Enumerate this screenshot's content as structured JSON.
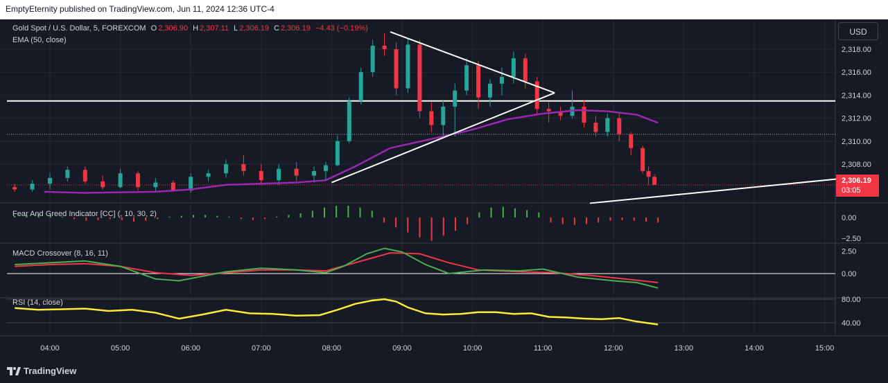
{
  "header": {
    "publisher": "EmptyEternity published on TradingView.com, Jun 11, 2024 12:36 UTC-4"
  },
  "toolbar": {
    "currency_label": "USD"
  },
  "legend": {
    "symbol": "Gold Spot / U.S. Dollar, 5, FOREXCOM",
    "o_label": "O",
    "o_value": "2,306.90",
    "h_label": "H",
    "h_value": "2,307.11",
    "l_label": "L",
    "l_value": "2,306.19",
    "c_label": "C",
    "c_value": "2,306.19",
    "change": "−4.43 (−0.19%)",
    "ema": "EMA (50, close)"
  },
  "indicators": {
    "fear_greed": "Fear And Greed Indicator [CC] (, 10, 30, 2)",
    "macd": "MACD Crossover (8, 16, 11)",
    "rsi": "RSI (14, close)"
  },
  "last_price": {
    "price": "2,306.19",
    "countdown": "03:05"
  },
  "footer": {
    "brand": "TradingView"
  },
  "colors": {
    "up": "#26a69a",
    "down": "#f23645",
    "ema": "#9c27b0",
    "rsi": "#ffeb3b",
    "macd": "#4caf50",
    "signal": "#f23645",
    "background": "#161a25"
  },
  "chart_data": {
    "type": "candlestick",
    "title": "Gold Spot / U.S. Dollar, 5, FOREXCOM",
    "x_tick_labels": [
      "04:00",
      "05:00",
      "06:00",
      "07:00",
      "08:00",
      "09:00",
      "10:00",
      "11:00",
      "12:00",
      "13:00",
      "14:00",
      "15:00"
    ],
    "y_tick_labels": [
      "2,318.00",
      "2,316.00",
      "2,314.00",
      "2,312.00",
      "2,310.00",
      "2,308.00"
    ],
    "ylim": [
      2305.5,
      2319.5
    ],
    "horizontal_level": 2313.5,
    "dotted_level": 2310.6,
    "last_price_level": 2306.19,
    "ema_points": [
      [
        "03:55",
        2305.6
      ],
      [
        "04:30",
        2305.5
      ],
      [
        "05:30",
        2305.6
      ],
      [
        "06:00",
        2305.8
      ],
      [
        "06:30",
        2306.2
      ],
      [
        "07:00",
        2306.3
      ],
      [
        "07:30",
        2306.4
      ],
      [
        "07:55",
        2306.6
      ],
      [
        "08:20",
        2307.8
      ],
      [
        "08:50",
        2309.4
      ],
      [
        "09:30",
        2310.3
      ],
      [
        "10:00",
        2311.0
      ],
      [
        "10:30",
        2311.9
      ],
      [
        "11:00",
        2312.4
      ],
      [
        "11:30",
        2312.7
      ],
      [
        "11:55",
        2312.6
      ],
      [
        "12:20",
        2312.3
      ],
      [
        "12:38",
        2311.6
      ]
    ],
    "candles_ohlc": [
      [
        "03:30",
        2306.0,
        2306.3,
        2305.6,
        2305.8
      ],
      [
        "03:45",
        2305.8,
        2306.6,
        2305.6,
        2306.3
      ],
      [
        "04:00",
        2306.3,
        2307.2,
        2305.8,
        2306.8
      ],
      [
        "04:15",
        2306.8,
        2307.8,
        2306.5,
        2307.5
      ],
      [
        "04:30",
        2307.5,
        2307.8,
        2306.3,
        2306.5
      ],
      [
        "04:45",
        2306.5,
        2307.0,
        2305.8,
        2306.0
      ],
      [
        "05:00",
        2306.0,
        2307.6,
        2305.9,
        2307.2
      ],
      [
        "05:15",
        2307.2,
        2307.4,
        2305.7,
        2306.0
      ],
      [
        "05:30",
        2306.0,
        2306.8,
        2305.6,
        2306.4
      ],
      [
        "05:45",
        2306.4,
        2306.6,
        2305.6,
        2305.7
      ],
      [
        "06:00",
        2305.7,
        2307.2,
        2305.5,
        2306.9
      ],
      [
        "06:15",
        2306.9,
        2307.5,
        2306.5,
        2307.2
      ],
      [
        "06:30",
        2307.2,
        2308.4,
        2306.8,
        2308.0
      ],
      [
        "06:45",
        2308.0,
        2308.8,
        2307.0,
        2307.4
      ],
      [
        "07:00",
        2307.4,
        2308.0,
        2306.2,
        2306.6
      ],
      [
        "07:15",
        2306.6,
        2308.0,
        2306.2,
        2307.6
      ],
      [
        "07:30",
        2307.6,
        2308.2,
        2306.5,
        2307.0
      ],
      [
        "07:45",
        2307.0,
        2307.8,
        2306.4,
        2307.4
      ],
      [
        "07:55",
        2307.4,
        2308.2,
        2306.6,
        2307.9
      ],
      [
        "08:05",
        2307.9,
        2310.5,
        2307.8,
        2310.0
      ],
      [
        "08:15",
        2310.0,
        2313.8,
        2309.8,
        2313.5
      ],
      [
        "08:25",
        2313.5,
        2316.4,
        2313.2,
        2316.0
      ],
      [
        "08:35",
        2316.0,
        2318.8,
        2315.6,
        2318.3
      ],
      [
        "08:45",
        2318.3,
        2319.4,
        2317.4,
        2318.0
      ],
      [
        "08:55",
        2318.0,
        2318.6,
        2314.0,
        2314.6
      ],
      [
        "09:05",
        2314.6,
        2319.0,
        2314.2,
        2318.4
      ],
      [
        "09:15",
        2318.4,
        2318.8,
        2312.0,
        2312.6
      ],
      [
        "09:25",
        2312.6,
        2313.4,
        2310.8,
        2311.4
      ],
      [
        "09:35",
        2311.4,
        2313.6,
        2310.2,
        2313.0
      ],
      [
        "09:45",
        2313.0,
        2315.0,
        2310.4,
        2314.4
      ],
      [
        "09:55",
        2314.4,
        2317.2,
        2314.0,
        2316.6
      ],
      [
        "10:05",
        2316.6,
        2317.0,
        2312.8,
        2313.8
      ],
      [
        "10:15",
        2313.8,
        2315.4,
        2313.0,
        2315.0
      ],
      [
        "10:25",
        2315.0,
        2316.4,
        2314.0,
        2315.6
      ],
      [
        "10:35",
        2315.6,
        2317.8,
        2315.0,
        2317.2
      ],
      [
        "10:45",
        2317.2,
        2317.6,
        2314.6,
        2315.2
      ],
      [
        "10:55",
        2315.2,
        2315.6,
        2312.4,
        2312.8
      ],
      [
        "11:05",
        2312.8,
        2313.4,
        2311.6,
        2312.6
      ],
      [
        "11:15",
        2312.6,
        2313.0,
        2311.8,
        2312.2
      ],
      [
        "11:25",
        2312.2,
        2314.4,
        2312.0,
        2313.0
      ],
      [
        "11:35",
        2313.0,
        2313.6,
        2311.2,
        2311.6
      ],
      [
        "11:45",
        2311.6,
        2312.2,
        2310.4,
        2310.8
      ],
      [
        "11:55",
        2310.8,
        2312.4,
        2310.4,
        2312.0
      ],
      [
        "12:05",
        2312.0,
        2312.4,
        2310.0,
        2310.6
      ],
      [
        "12:15",
        2310.6,
        2310.8,
        2308.8,
        2309.4
      ],
      [
        "12:25",
        2309.4,
        2309.6,
        2307.2,
        2307.4
      ],
      [
        "12:30",
        2307.4,
        2307.8,
        2306.2,
        2306.9
      ],
      [
        "12:35",
        2306.9,
        2307.11,
        2306.19,
        2306.19
      ]
    ],
    "fear_greed": {
      "y_tick_labels": [
        "0.00",
        "−2.50"
      ],
      "values": [
        0.2,
        0.3,
        0.4,
        0.3,
        0.1,
        -0.2,
        -0.4,
        -0.3,
        -0.2,
        -0.3,
        -0.5,
        -0.4,
        -0.2,
        0.1,
        0.2,
        0.3,
        0.3,
        0.2,
        0.1,
        -0.2,
        -0.3,
        -0.2,
        0.1,
        0.3,
        0.5,
        0.8,
        1.2,
        1.4,
        1.4,
        1.2,
        0.8,
        -0.6,
        -1.2,
        -1.8,
        -2.4,
        -2.8,
        -2.2,
        -1.6,
        -0.8,
        0.6,
        1.2,
        1.3,
        1.1,
        0.9,
        0.6,
        -0.6,
        -0.8,
        -0.9,
        -0.8,
        -0.6,
        -0.4,
        -0.3,
        -0.4,
        -0.5,
        -0.6
      ]
    },
    "macd": {
      "y_tick_labels": [
        "2.50",
        "0.00"
      ],
      "macd_line": [
        [
          "03:30",
          1.0
        ],
        [
          "04:00",
          1.2
        ],
        [
          "04:30",
          1.4
        ],
        [
          "05:00",
          0.8
        ],
        [
          "05:30",
          -0.6
        ],
        [
          "05:50",
          -0.8
        ],
        [
          "06:30",
          0.2
        ],
        [
          "07:00",
          0.6
        ],
        [
          "07:30",
          0.4
        ],
        [
          "07:55",
          0.1
        ],
        [
          "08:10",
          0.8
        ],
        [
          "08:30",
          2.2
        ],
        [
          "08:45",
          2.8
        ],
        [
          "09:00",
          2.4
        ],
        [
          "09:20",
          1.0
        ],
        [
          "09:40",
          0.0
        ],
        [
          "10:10",
          0.4
        ],
        [
          "10:40",
          0.3
        ],
        [
          "11:00",
          0.5
        ],
        [
          "11:30",
          -0.4
        ],
        [
          "12:00",
          -0.8
        ],
        [
          "12:20",
          -1.0
        ],
        [
          "12:38",
          -1.6
        ]
      ],
      "signal_line": [
        [
          "03:30",
          0.8
        ],
        [
          "04:00",
          1.0
        ],
        [
          "04:30",
          1.1
        ],
        [
          "05:00",
          0.8
        ],
        [
          "05:30",
          0.1
        ],
        [
          "06:00",
          -0.2
        ],
        [
          "06:30",
          0.1
        ],
        [
          "07:00",
          0.4
        ],
        [
          "07:30",
          0.4
        ],
        [
          "07:55",
          0.3
        ],
        [
          "08:20",
          1.2
        ],
        [
          "08:50",
          2.3
        ],
        [
          "09:15",
          2.2
        ],
        [
          "09:40",
          1.2
        ],
        [
          "10:05",
          0.4
        ],
        [
          "10:40",
          0.2
        ],
        [
          "11:10",
          0.1
        ],
        [
          "11:40",
          -0.2
        ],
        [
          "12:10",
          -0.6
        ],
        [
          "12:38",
          -1.0
        ]
      ]
    },
    "rsi": {
      "y_tick_labels": [
        "80.00",
        "40.00"
      ],
      "values": [
        [
          "03:30",
          65
        ],
        [
          "03:50",
          62
        ],
        [
          "04:10",
          63
        ],
        [
          "04:30",
          64
        ],
        [
          "04:50",
          60
        ],
        [
          "05:10",
          62
        ],
        [
          "05:30",
          57
        ],
        [
          "05:50",
          47
        ],
        [
          "06:10",
          54
        ],
        [
          "06:30",
          62
        ],
        [
          "06:50",
          56
        ],
        [
          "07:10",
          55
        ],
        [
          "07:30",
          52
        ],
        [
          "07:50",
          53
        ],
        [
          "08:05",
          62
        ],
        [
          "08:20",
          72
        ],
        [
          "08:35",
          78
        ],
        [
          "08:45",
          80
        ],
        [
          "08:55",
          76
        ],
        [
          "09:05",
          66
        ],
        [
          "09:20",
          56
        ],
        [
          "09:35",
          54
        ],
        [
          "09:50",
          55
        ],
        [
          "10:05",
          58
        ],
        [
          "10:20",
          58
        ],
        [
          "10:35",
          55
        ],
        [
          "10:50",
          56
        ],
        [
          "11:05",
          50
        ],
        [
          "11:20",
          49
        ],
        [
          "11:35",
          47
        ],
        [
          "11:50",
          46
        ],
        [
          "12:05",
          48
        ],
        [
          "12:20",
          42
        ],
        [
          "12:38",
          37
        ]
      ]
    }
  }
}
